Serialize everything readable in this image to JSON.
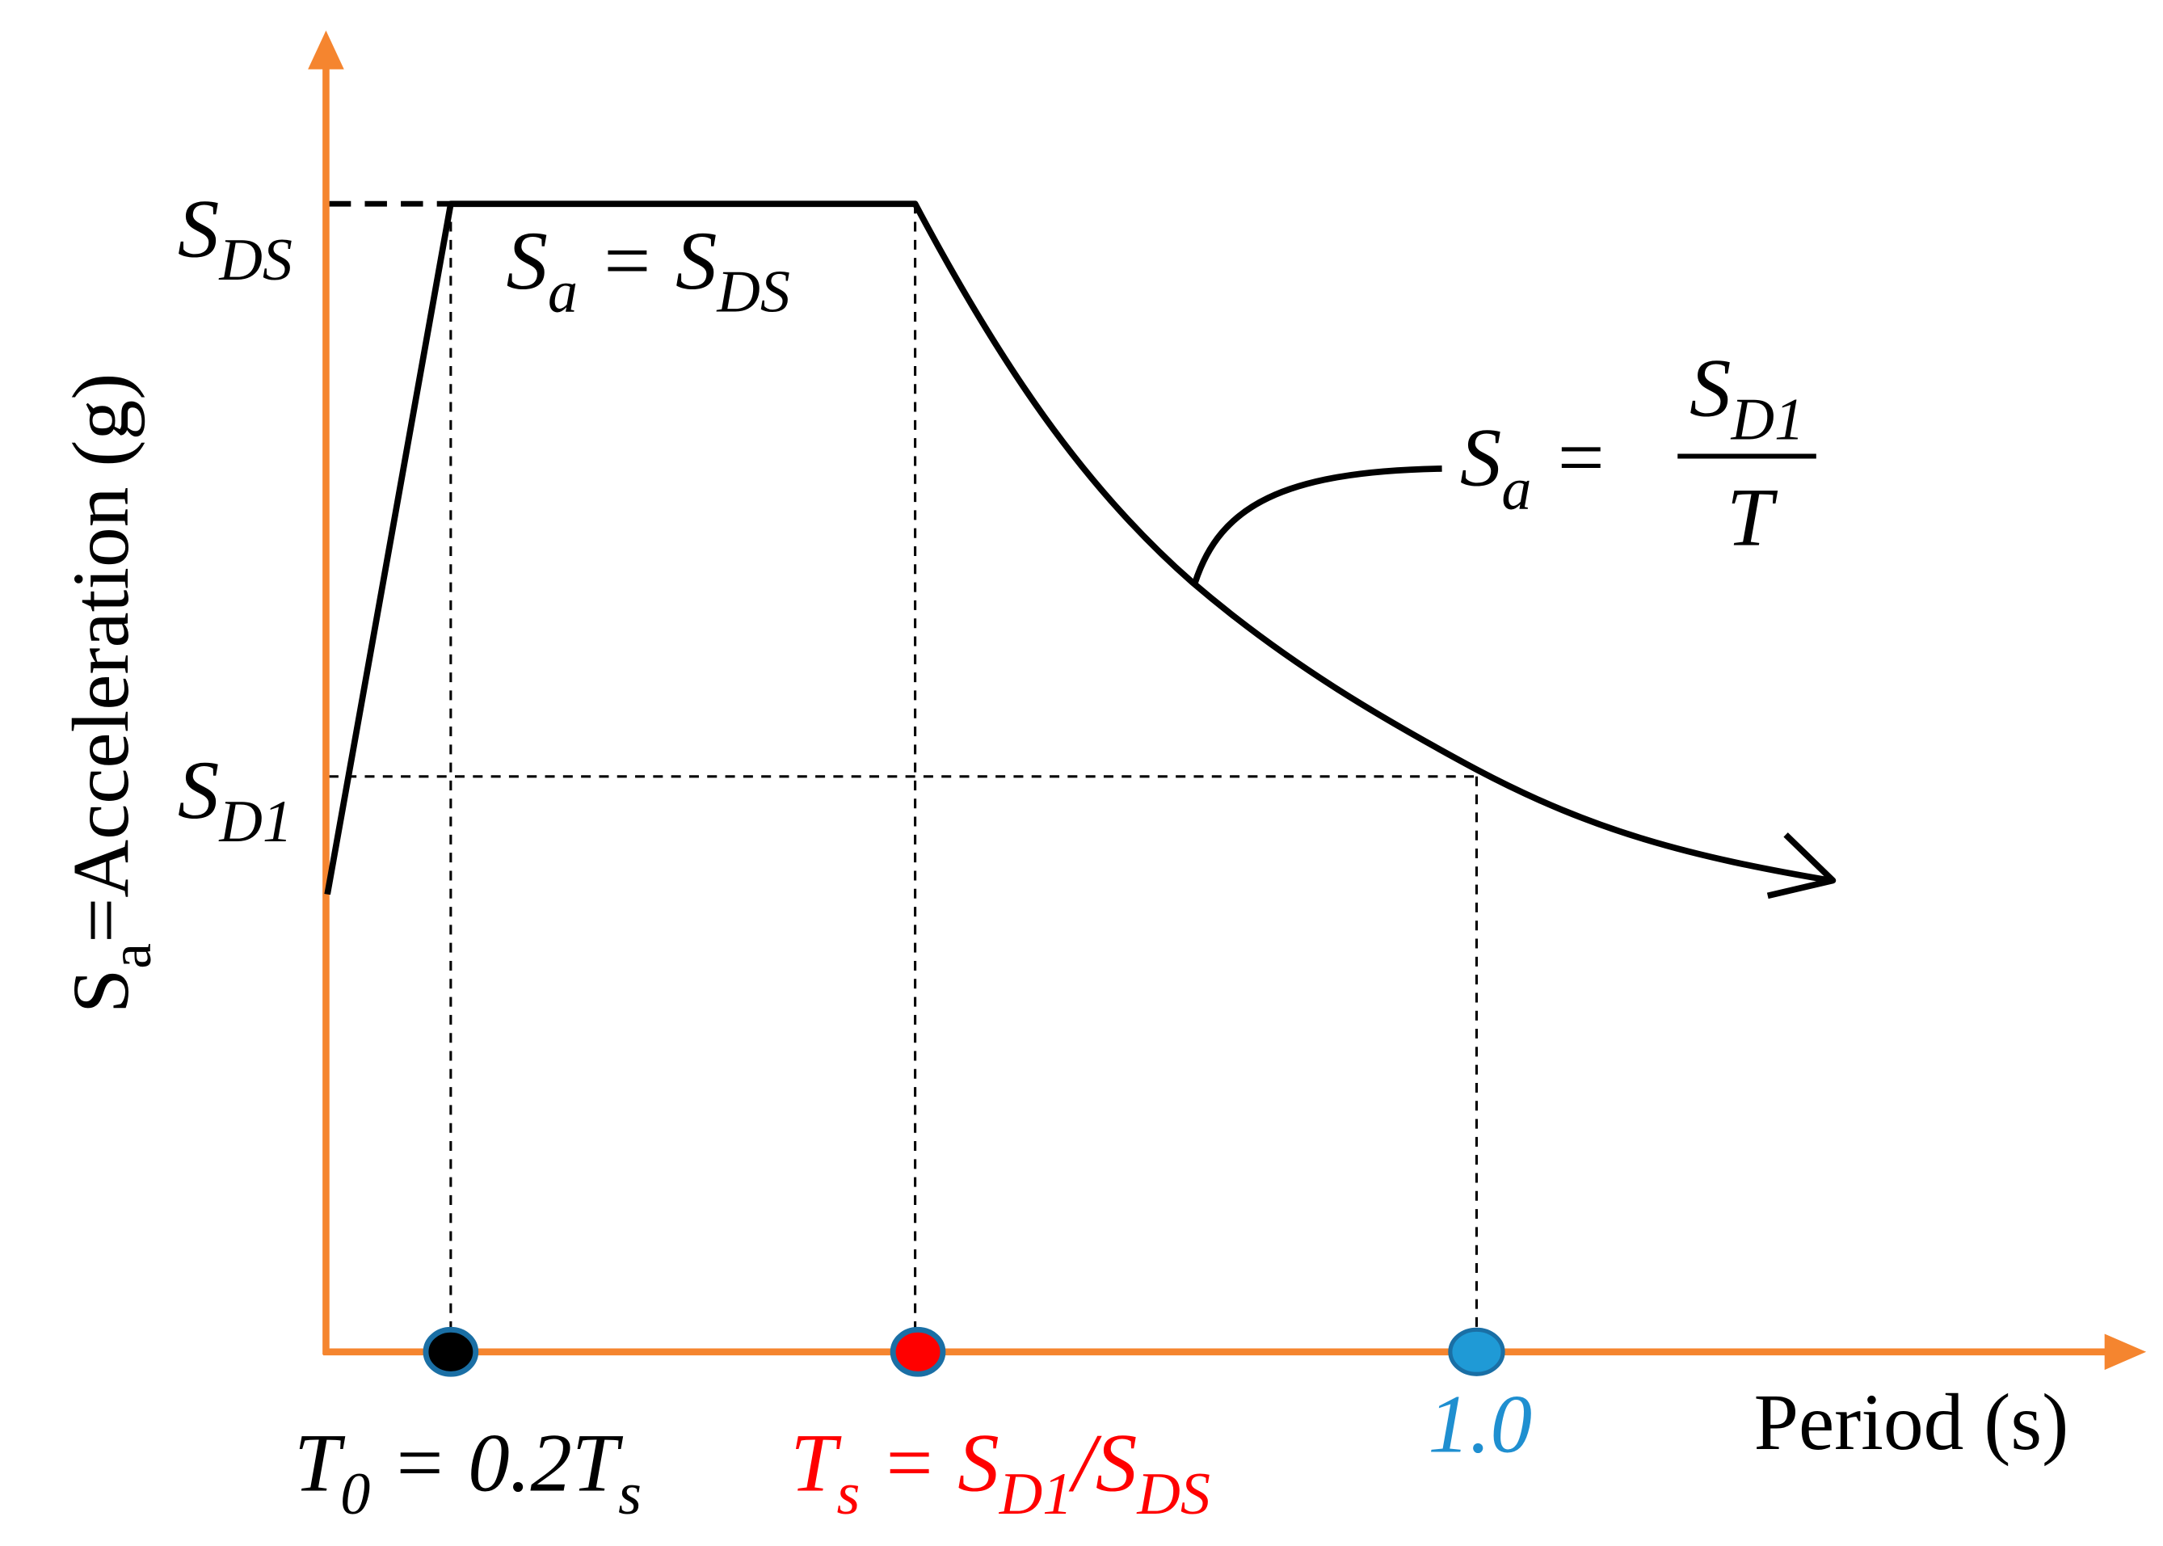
{
  "y_axis": {
    "title": [
      {
        "text": "S"
      },
      {
        "sub": "a"
      },
      {
        "text": "=Acceleration (g)"
      }
    ],
    "levels": [
      [
        {
          "text": "S"
        },
        {
          "sub": "DS"
        }
      ],
      [
        {
          "text": "S"
        },
        {
          "sub": "D1"
        }
      ]
    ]
  },
  "x_axis": {
    "title": "Period (s)",
    "points": [
      [
        {
          "text": "T"
        },
        {
          "sub": "0"
        },
        {
          "text": " = 0.2T"
        },
        {
          "sub": "s"
        }
      ],
      [
        {
          "text": "T"
        },
        {
          "sub": "s"
        },
        {
          "text": " = S"
        },
        {
          "sub": "D1"
        },
        {
          "text": "/S"
        },
        {
          "sub": "DS"
        }
      ],
      [
        {
          "text": "1.0"
        }
      ]
    ]
  },
  "equations": {
    "plateau": [
      {
        "text": "S"
      },
      {
        "sub": "a"
      },
      {
        "text": " = S"
      },
      {
        "sub": "DS"
      }
    ],
    "descending": {
      "lhs": [
        {
          "text": "S"
        },
        {
          "sub": "a"
        },
        {
          "text": " ="
        }
      ],
      "numerator": [
        {
          "text": "S"
        },
        {
          "sub": "D1"
        }
      ],
      "denominator": [
        {
          "text": "T"
        }
      ]
    }
  }
}
